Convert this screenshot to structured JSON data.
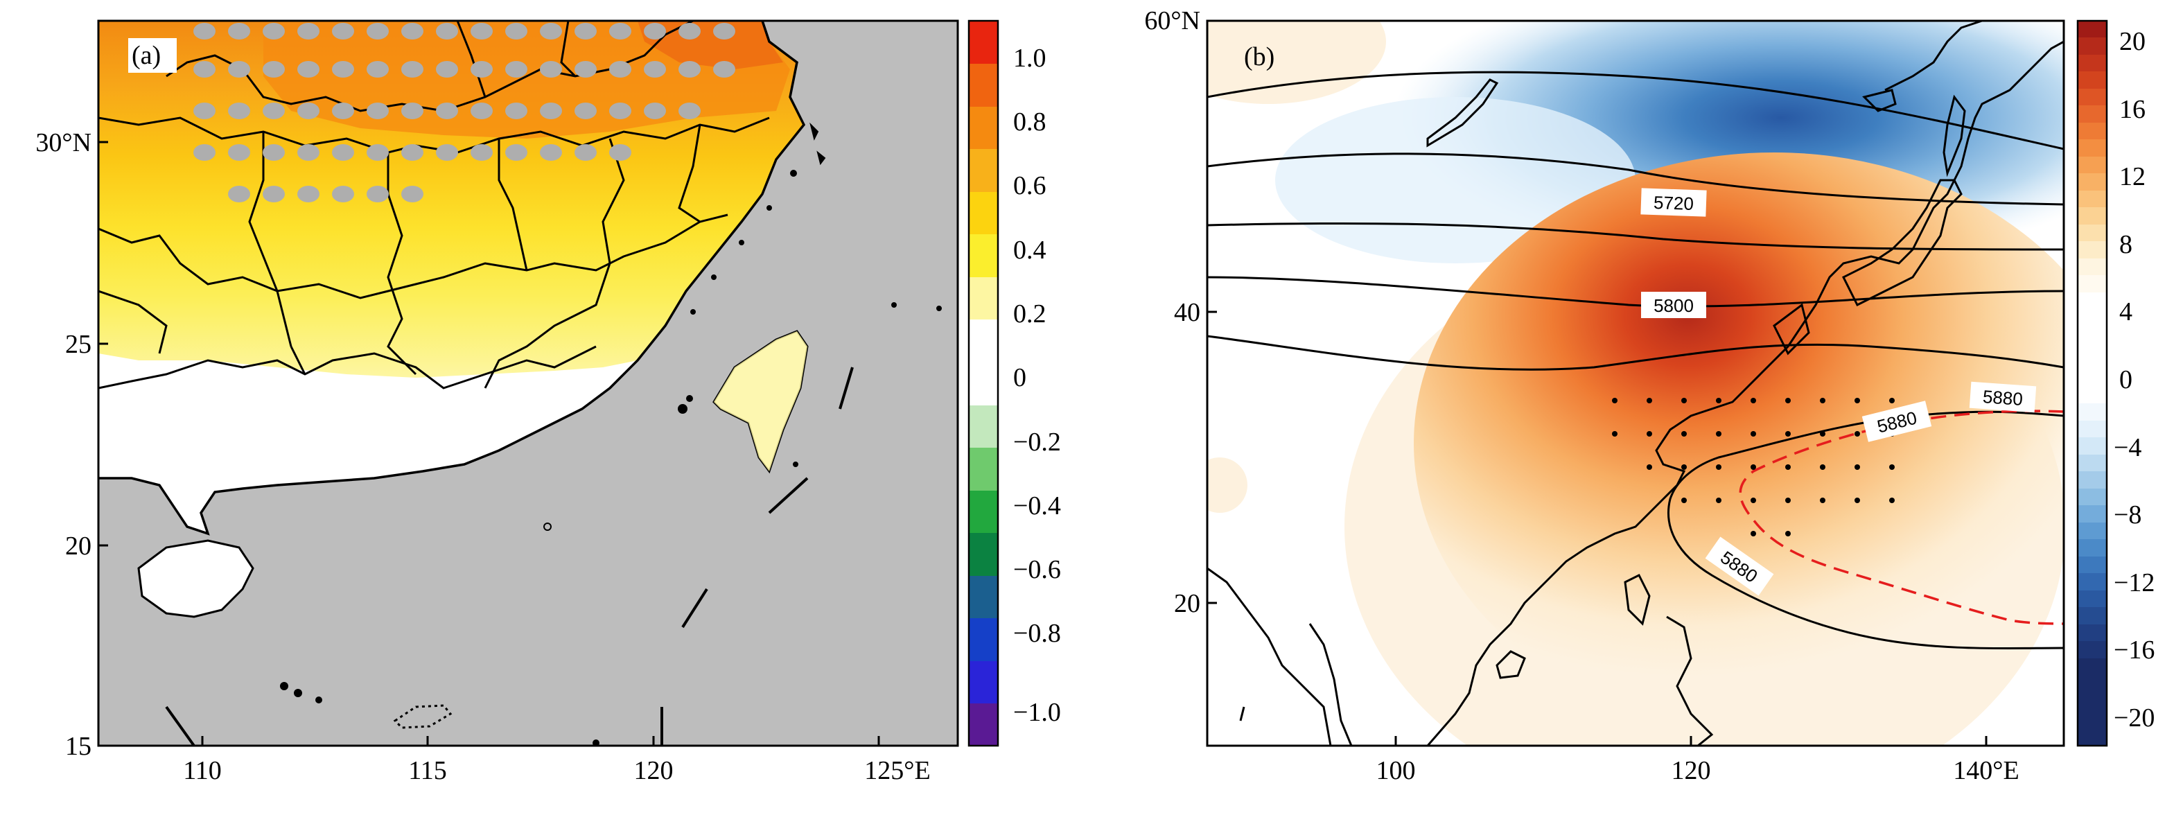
{
  "figure": {
    "panel_a_label": "(a)",
    "panel_b_label": "(b)"
  },
  "panel_a": {
    "x_ticks": [
      "110",
      "115",
      "120",
      "125°E"
    ],
    "y_ticks": [
      "30°N",
      "25",
      "20",
      "15"
    ],
    "colorbar_ticks": [
      "1.0",
      "0.8",
      "0.6",
      "0.4",
      "0.2",
      "0",
      "−0.2",
      "−0.4",
      "−0.6",
      "−0.8",
      "−1.0"
    ],
    "colorbar_colors": [
      "#e8250f",
      "#f06410",
      "#f58a10",
      "#f8b11a",
      "#fcd30f",
      "#fbee2d",
      "#fdf6a2",
      "#ffffff",
      "#c3e8bd",
      "#6fca6d",
      "#22a83e",
      "#0b8241",
      "#1b5f8f",
      "#1540c8",
      "#2a24d8",
      "#3b2fb0",
      "#5a1a94"
    ],
    "land_mask_color": "#bdbdbd"
  },
  "panel_b": {
    "x_ticks": [
      "100",
      "120",
      "140°E"
    ],
    "y_ticks": [
      "60°N",
      "40",
      "20"
    ],
    "contour_labels": [
      "5720",
      "5800",
      "5880",
      "5880",
      "5880"
    ],
    "colorbar_ticks": [
      "20",
      "16",
      "12",
      "8",
      "4",
      "0",
      "−4",
      "−8",
      "−12",
      "−16",
      "−20"
    ]
  }
}
